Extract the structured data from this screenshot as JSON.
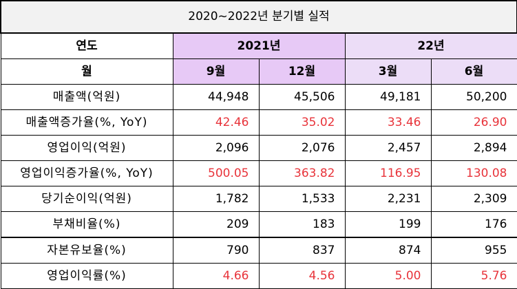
{
  "title": "2020~2022년 분기별 실적",
  "header": {
    "year_label": "연도",
    "month_label": "월",
    "years": [
      "2021년",
      "22년"
    ],
    "months": [
      "9월",
      "12월",
      "3월",
      "6월"
    ]
  },
  "rows": [
    {
      "label": "매출액(억원)",
      "values": [
        "44,948",
        "45,506",
        "49,181",
        "50,200"
      ],
      "highlight": false
    },
    {
      "label": "매출액증가율(%, YoY)",
      "values": [
        "42.46",
        "35.02",
        "33.46",
        "26.90"
      ],
      "highlight": true
    },
    {
      "label": "영업이익(억원)",
      "values": [
        "2,096",
        "2,076",
        "2,457",
        "2,894"
      ],
      "highlight": false
    },
    {
      "label": "영업이익증가율(%, YoY)",
      "values": [
        "500.05",
        "363.82",
        "116.95",
        "130.08"
      ],
      "highlight": true
    },
    {
      "label": "당기순이익(억원)",
      "values": [
        "1,782",
        "1,533",
        "2,231",
        "2,309"
      ],
      "highlight": false
    },
    {
      "label": "부채비율(%)",
      "values": [
        "209",
        "183",
        "199",
        "176"
      ],
      "highlight": false
    },
    {
      "label": "자본유보율(%)",
      "values": [
        "790",
        "837",
        "874",
        "955"
      ],
      "highlight": false
    },
    {
      "label": "영업이익률(%)",
      "values": [
        "4.66",
        "4.56",
        "5.00",
        "5.76"
      ],
      "highlight": true
    }
  ],
  "colors": {
    "highlight_text": "#e8333a",
    "header_2021": "#e7c9f6",
    "header_22": "#ecddf7",
    "title_bg": "#f2f2f2"
  }
}
